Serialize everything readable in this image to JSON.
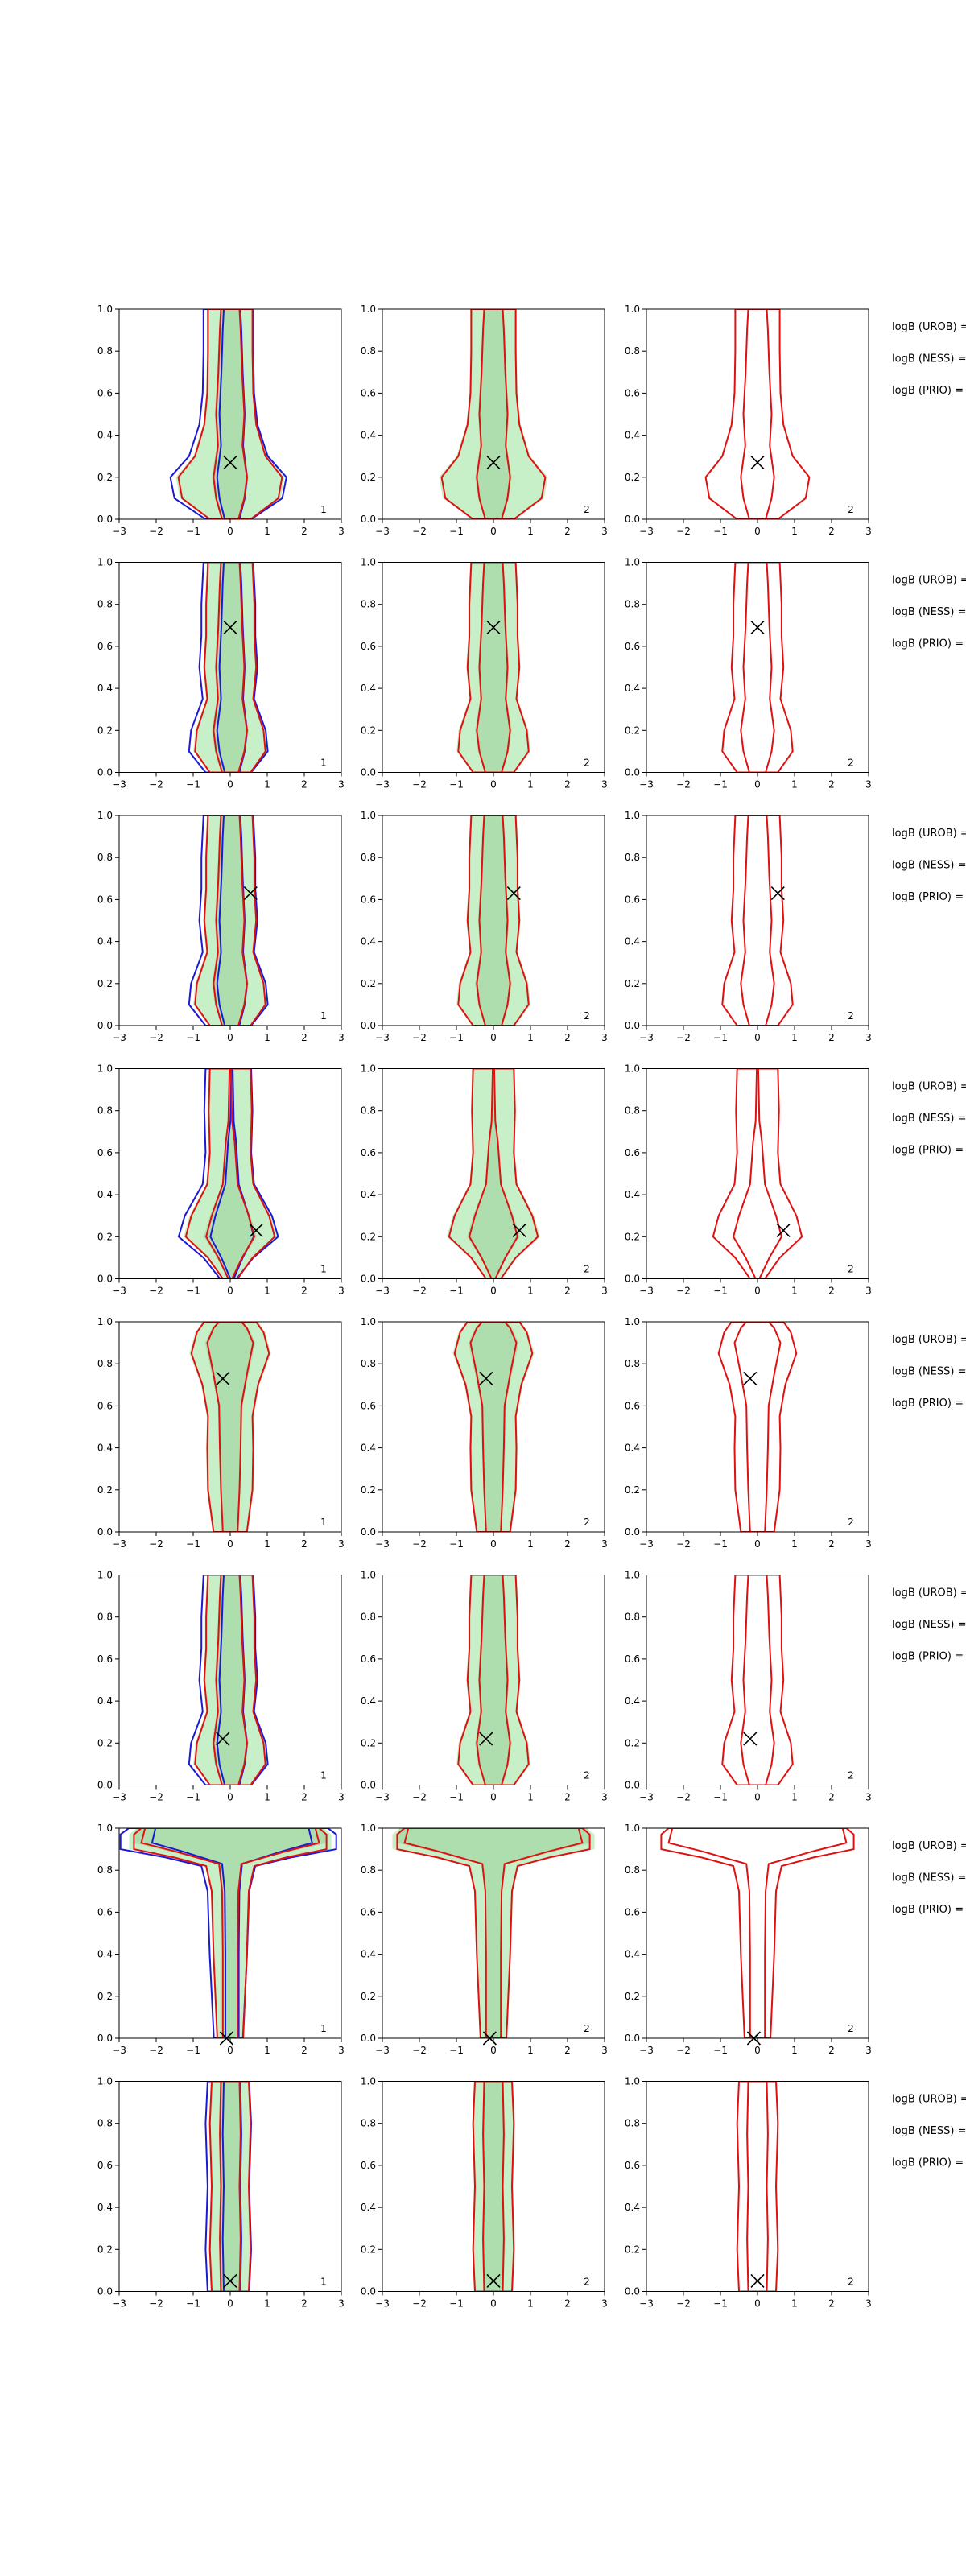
{
  "figure": {
    "xlim": [
      -3,
      3
    ],
    "ylim": [
      0,
      1
    ],
    "x_ticks": [
      "−3",
      "−2",
      "−1",
      "0",
      "1",
      "2",
      "3"
    ],
    "y_ticks": [
      "0.0",
      "0.2",
      "0.4",
      "0.6",
      "0.8",
      "1.0"
    ],
    "panel_corner_labels": [
      "1",
      "2",
      "2"
    ],
    "side_labels": [
      "logB (UROB) =",
      "logB (NESS) =",
      "logB (PRIO) ="
    ],
    "colors": {
      "fill_light": "#c8f0c8",
      "fill_dark": "#a8d8a8",
      "blue_contour": "#1a1ad6",
      "red_contour": "#e01010",
      "marker": "#000000",
      "axes": "#000000"
    },
    "marker_icon": "cross-x-marker"
  },
  "chart_data": [
    {
      "type": "contour",
      "row": 1,
      "marker": {
        "x": 0.0,
        "y": 0.27
      }
    },
    {
      "type": "contour",
      "row": 2,
      "marker": {
        "x": 0.0,
        "y": 0.69
      }
    },
    {
      "type": "contour",
      "row": 3,
      "marker": {
        "x": 0.55,
        "y": 0.63
      }
    },
    {
      "type": "contour",
      "row": 4,
      "marker": {
        "x": 0.7,
        "y": 0.23
      }
    },
    {
      "type": "contour",
      "row": 5,
      "marker": {
        "x": -0.2,
        "y": 0.73
      }
    },
    {
      "type": "contour",
      "row": 6,
      "marker": {
        "x": -0.2,
        "y": 0.22
      }
    },
    {
      "type": "contour",
      "row": 7,
      "marker": {
        "x": -0.1,
        "y": 0.0
      }
    },
    {
      "type": "contour",
      "row": 8,
      "marker": {
        "x": 0.0,
        "y": 0.05
      }
    }
  ]
}
